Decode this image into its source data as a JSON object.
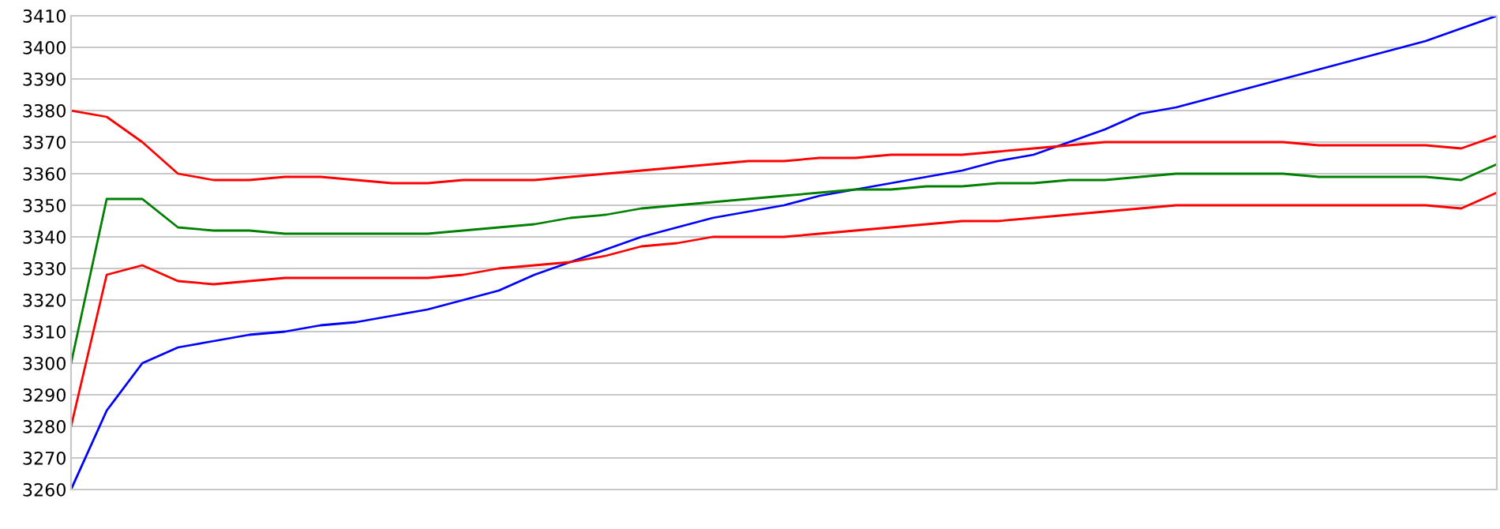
{
  "chart_data": {
    "type": "line",
    "categories": [
      null,
      null,
      null,
      null,
      null,
      null,
      null,
      null,
      null,
      null,
      null,
      null,
      null,
      null,
      null,
      null,
      null,
      null,
      null,
      null,
      null,
      null,
      null,
      null,
      null,
      null,
      null,
      null,
      null,
      null,
      null,
      null,
      null,
      null,
      null,
      null,
      null,
      null,
      null,
      null,
      null
    ],
    "series": [
      {
        "color": "#0000ff",
        "values": [
          3260,
          3285,
          3300,
          3305,
          3307,
          3309,
          3310,
          3312,
          3313,
          3315,
          3317,
          3320,
          3323,
          3328,
          3332,
          3336,
          3340,
          3343,
          3346,
          3348,
          3350,
          3353,
          3355,
          3357,
          3359,
          3361,
          3364,
          3366,
          3370,
          3374,
          3379,
          3381,
          3384,
          3387,
          3390,
          3393,
          3396,
          3399,
          3402,
          3406,
          3410
        ]
      },
      {
        "color": "#ff0000",
        "values": [
          3380,
          3378,
          3370,
          3360,
          3358,
          3358,
          3359,
          3359,
          3358,
          3357,
          3357,
          3358,
          3358,
          3358,
          3359,
          3360,
          3361,
          3362,
          3363,
          3364,
          3364,
          3365,
          3365,
          3366,
          3366,
          3366,
          3367,
          3368,
          3369,
          3370,
          3370,
          3370,
          3370,
          3370,
          3370,
          3369,
          3369,
          3369,
          3369,
          3368,
          3372
        ]
      },
      {
        "color": "#008000",
        "values": [
          3300,
          3352,
          3352,
          3343,
          3342,
          3342,
          3341,
          3341,
          3341,
          3341,
          3341,
          3342,
          3343,
          3344,
          3346,
          3347,
          3349,
          3350,
          3351,
          3352,
          3353,
          3354,
          3355,
          3355,
          3356,
          3356,
          3357,
          3357,
          3358,
          3358,
          3359,
          3360,
          3360,
          3360,
          3360,
          3359,
          3359,
          3359,
          3359,
          3358,
          3363
        ]
      },
      {
        "color": "#ff0000",
        "values": [
          3280,
          3328,
          3331,
          3326,
          3325,
          3326,
          3327,
          3327,
          3327,
          3327,
          3327,
          3328,
          3330,
          3331,
          3332,
          3334,
          3337,
          3338,
          3340,
          3340,
          3340,
          3341,
          3342,
          3343,
          3344,
          3345,
          3345,
          3346,
          3347,
          3348,
          3349,
          3350,
          3350,
          3350,
          3350,
          3350,
          3350,
          3350,
          3350,
          3349,
          3354
        ]
      }
    ],
    "ylim": [
      3260,
      3410
    ],
    "yticks": [
      3260,
      3270,
      3280,
      3290,
      3300,
      3310,
      3320,
      3330,
      3340,
      3350,
      3360,
      3370,
      3380,
      3390,
      3400,
      3410
    ],
    "grid": "y",
    "tick_labels": "y",
    "legend": false,
    "marker": "none",
    "line_style": "solid"
  }
}
